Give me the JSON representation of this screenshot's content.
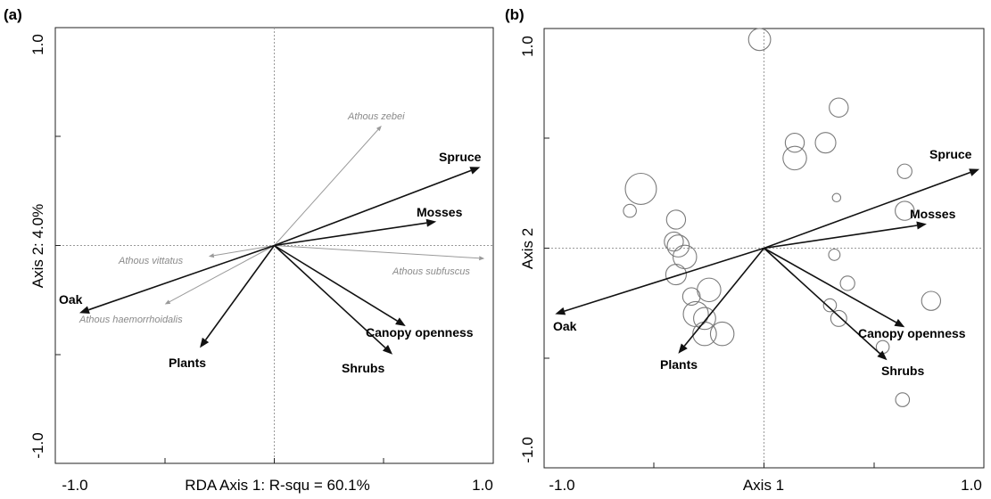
{
  "colors": {
    "axis": "#222222",
    "guide": "#9a9a9a",
    "env_arrow": "#111111",
    "species_arrow": "#9a9a9a",
    "circle": "#7a7a7a"
  },
  "chart_data": [
    {
      "panel_label": "(a)",
      "type": "scatter",
      "subtype": "rda-biplot",
      "xlabel": "RDA Axis 1: R-squ = 60.1%",
      "ylabel": "Axis 2: 4.0%",
      "xlim": [
        -1.0,
        1.0
      ],
      "ylim": [
        -1.0,
        1.0
      ],
      "x_tick_labels": [
        "-1.0",
        "1.0"
      ],
      "y_tick_labels": [
        "-1.0",
        "1.0"
      ],
      "env_vectors": [
        {
          "name": "Spruce",
          "x": 0.94,
          "y": 0.36
        },
        {
          "name": "Mosses",
          "x": 0.74,
          "y": 0.11
        },
        {
          "name": "Oak",
          "x": -0.89,
          "y": -0.31
        },
        {
          "name": "Plants",
          "x": -0.34,
          "y": -0.47
        },
        {
          "name": "Canopy openness",
          "x": 0.6,
          "y": -0.37
        },
        {
          "name": "Shrubs",
          "x": 0.54,
          "y": -0.5
        }
      ],
      "species_vectors": [
        {
          "name": "Athous zebei",
          "x": 0.49,
          "y": 0.55
        },
        {
          "name": "Athous vittatus",
          "x": -0.3,
          "y": -0.05
        },
        {
          "name": "Athous subfuscus",
          "x": 0.96,
          "y": -0.06
        },
        {
          "name": "Athous haemorrhoidalis",
          "x": -0.5,
          "y": -0.27
        }
      ]
    },
    {
      "panel_label": "(b)",
      "type": "scatter",
      "subtype": "rda-biplot-bubbles",
      "xlabel": "Axis 1",
      "ylabel": "Axis 2",
      "xlim": [
        -1.0,
        1.0
      ],
      "ylim": [
        -1.0,
        1.0
      ],
      "x_tick_labels": [
        "-1.0",
        "1.0"
      ],
      "y_tick_labels": [
        "-1.0",
        "1.0"
      ],
      "env_vectors": [
        {
          "name": "Spruce",
          "x": 0.98,
          "y": 0.36
        },
        {
          "name": "Mosses",
          "x": 0.74,
          "y": 0.11
        },
        {
          "name": "Oak",
          "x": -0.95,
          "y": -0.3
        },
        {
          "name": "Plants",
          "x": -0.39,
          "y": -0.48
        },
        {
          "name": "Canopy openness",
          "x": 0.64,
          "y": -0.36
        },
        {
          "name": "Shrubs",
          "x": 0.56,
          "y": -0.51
        }
      ],
      "points": [
        {
          "x": -0.02,
          "y": 0.95,
          "size": 0.55
        },
        {
          "x": 0.34,
          "y": 0.64,
          "size": 0.45
        },
        {
          "x": 0.28,
          "y": 0.48,
          "size": 0.5
        },
        {
          "x": 0.14,
          "y": 0.48,
          "size": 0.45
        },
        {
          "x": 0.14,
          "y": 0.41,
          "size": 0.6
        },
        {
          "x": 0.64,
          "y": 0.35,
          "size": 0.3
        },
        {
          "x": -0.56,
          "y": 0.27,
          "size": 0.85
        },
        {
          "x": 0.33,
          "y": 0.23,
          "size": 0.1
        },
        {
          "x": 0.64,
          "y": 0.17,
          "size": 0.45
        },
        {
          "x": -0.61,
          "y": 0.17,
          "size": 0.25
        },
        {
          "x": -0.4,
          "y": 0.13,
          "size": 0.45
        },
        {
          "x": -0.41,
          "y": 0.03,
          "size": 0.45
        },
        {
          "x": -0.39,
          "y": 0.01,
          "size": 0.55
        },
        {
          "x": -0.36,
          "y": -0.04,
          "size": 0.6
        },
        {
          "x": -0.4,
          "y": -0.12,
          "size": 0.5
        },
        {
          "x": 0.32,
          "y": -0.03,
          "size": 0.2
        },
        {
          "x": 0.38,
          "y": -0.16,
          "size": 0.3
        },
        {
          "x": -0.25,
          "y": -0.19,
          "size": 0.6
        },
        {
          "x": -0.33,
          "y": -0.22,
          "size": 0.4
        },
        {
          "x": 0.76,
          "y": -0.24,
          "size": 0.45
        },
        {
          "x": 0.3,
          "y": -0.26,
          "size": 0.25
        },
        {
          "x": -0.31,
          "y": -0.3,
          "size": 0.65
        },
        {
          "x": -0.27,
          "y": -0.32,
          "size": 0.55
        },
        {
          "x": 0.34,
          "y": -0.32,
          "size": 0.35
        },
        {
          "x": -0.27,
          "y": -0.39,
          "size": 0.6
        },
        {
          "x": -0.19,
          "y": -0.39,
          "size": 0.6
        },
        {
          "x": 0.54,
          "y": -0.45,
          "size": 0.25
        },
        {
          "x": 0.63,
          "y": -0.69,
          "size": 0.28
        }
      ]
    }
  ]
}
